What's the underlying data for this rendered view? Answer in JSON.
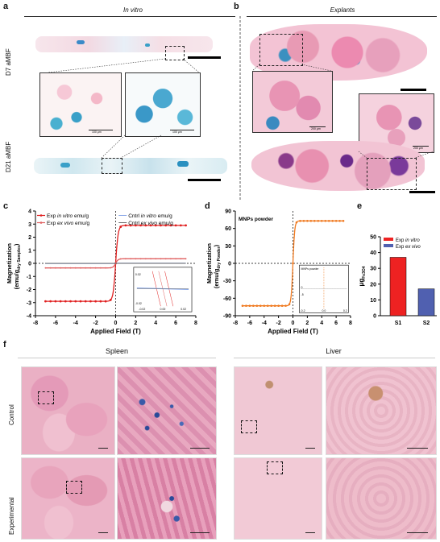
{
  "panels": {
    "a": {
      "letter": "a",
      "header": "In vitro",
      "row1": "D7 aMBF",
      "row2": "D21 aMBF",
      "scale1": "100 μm",
      "scale2": "100 μm"
    },
    "b": {
      "letter": "b",
      "header": "Explants",
      "scale1": "200 μm",
      "scale2": "200 μm"
    },
    "c": {
      "letter": "c"
    },
    "d": {
      "letter": "d",
      "annotation": "MNPs powder",
      "inset_label": "MNPs powder"
    },
    "e": {
      "letter": "e"
    },
    "f": {
      "letter": "f",
      "col1": "Spleen",
      "col2": "Liver",
      "row1": "Control",
      "row2": "Experimental"
    }
  },
  "colors": {
    "exp_in_vitro": "#e02020",
    "exp_ex_vivo": "#e06060",
    "cntrl_in_vitro": "#8aa8e8",
    "cntrl_ex_vivo": "#6a6a6a",
    "mnps": "#f07a20",
    "bar_s1": "#ee2222",
    "bar_s2": "#5060b0",
    "he_pink": "#e8a0b8",
    "prussian_blue": "#2a6ab8"
  },
  "chart_data": [
    {
      "panel": "c",
      "type": "line",
      "xlabel": "Applied Field (T)",
      "ylabel_parts": [
        "Magnetization",
        "(emu/g",
        "dry Samples",
        ")"
      ],
      "xlim": [
        -8,
        8
      ],
      "ylim": [
        -4,
        4
      ],
      "xticks": [
        "-8",
        "-6",
        "-4",
        "-2",
        "0",
        "2",
        "4",
        "6",
        "8"
      ],
      "yticks": [
        "-4",
        "-3",
        "-2",
        "-1",
        "0",
        "1",
        "2",
        "3",
        "4"
      ],
      "legend_left": [
        "Exp in vitro emu/g",
        "Exp ex vivo emu/g"
      ],
      "legend_right": [
        "Cntrl in vitro emu/g",
        "Cntrl ex vivo emu/g"
      ],
      "legend_left_parts": [
        [
          "Exp ",
          "in vitro",
          " emu/g"
        ],
        [
          "Exp ",
          "ex vivo",
          " emu/g"
        ]
      ],
      "legend_right_parts": [
        [
          "Cntrl ",
          "in vitro",
          " emu/g"
        ],
        [
          "Cntrl ",
          "ex vivo",
          " emu/g"
        ]
      ],
      "series": [
        {
          "name": "Exp in vitro emu/g",
          "saturation": 2.9,
          "width": 0.25
        },
        {
          "name": "Exp ex vivo emu/g",
          "saturation": 0.35,
          "width": 0.25
        },
        {
          "name": "Cntrl in vitro emu/g",
          "saturation": 0.02,
          "width": 0.3
        },
        {
          "name": "Cntrl ex vivo emu/g",
          "saturation": 0.0,
          "width": 0.3
        }
      ],
      "inset": {
        "xticks": [
          "-0.02",
          "0.00",
          "0.02"
        ],
        "yticks": [
          "0.02",
          "-0.02"
        ]
      }
    },
    {
      "panel": "d",
      "type": "line",
      "xlabel": "Applied Field (T)",
      "ylabel_parts": [
        "Magnetization",
        "(emu/g",
        "dry Powder",
        ")"
      ],
      "xlim": [
        -8,
        8
      ],
      "ylim": [
        -90,
        90
      ],
      "xticks": [
        "-8",
        "-6",
        "-4",
        "-2",
        "0",
        "2",
        "4",
        "6",
        "8"
      ],
      "yticks": [
        "90",
        "60",
        "30",
        "0",
        "-30",
        "-60",
        "-90"
      ],
      "series": [
        {
          "name": "MNPs powder",
          "saturation": 73,
          "width": 0.25
        }
      ],
      "inset": {
        "xticks": [
          "-0.2",
          "0.0",
          "0.2"
        ],
        "yticks": [
          "0",
          "-5"
        ]
      }
    },
    {
      "panel": "e",
      "type": "bar",
      "categories": [
        "S1",
        "S2"
      ],
      "values": [
        37,
        17
      ],
      "ylim": [
        0,
        50
      ],
      "yticks": [
        "0",
        "10",
        "20",
        "30",
        "40",
        "50"
      ],
      "ylabel_main": "μg",
      "ylabel_sub": "Fe3O4",
      "legend": [
        "Exp in vitro",
        "Exp ex vivo"
      ],
      "legend_parts": [
        [
          "Exp ",
          "in vitro"
        ],
        [
          "Exp ",
          "ex vivo"
        ]
      ]
    }
  ]
}
